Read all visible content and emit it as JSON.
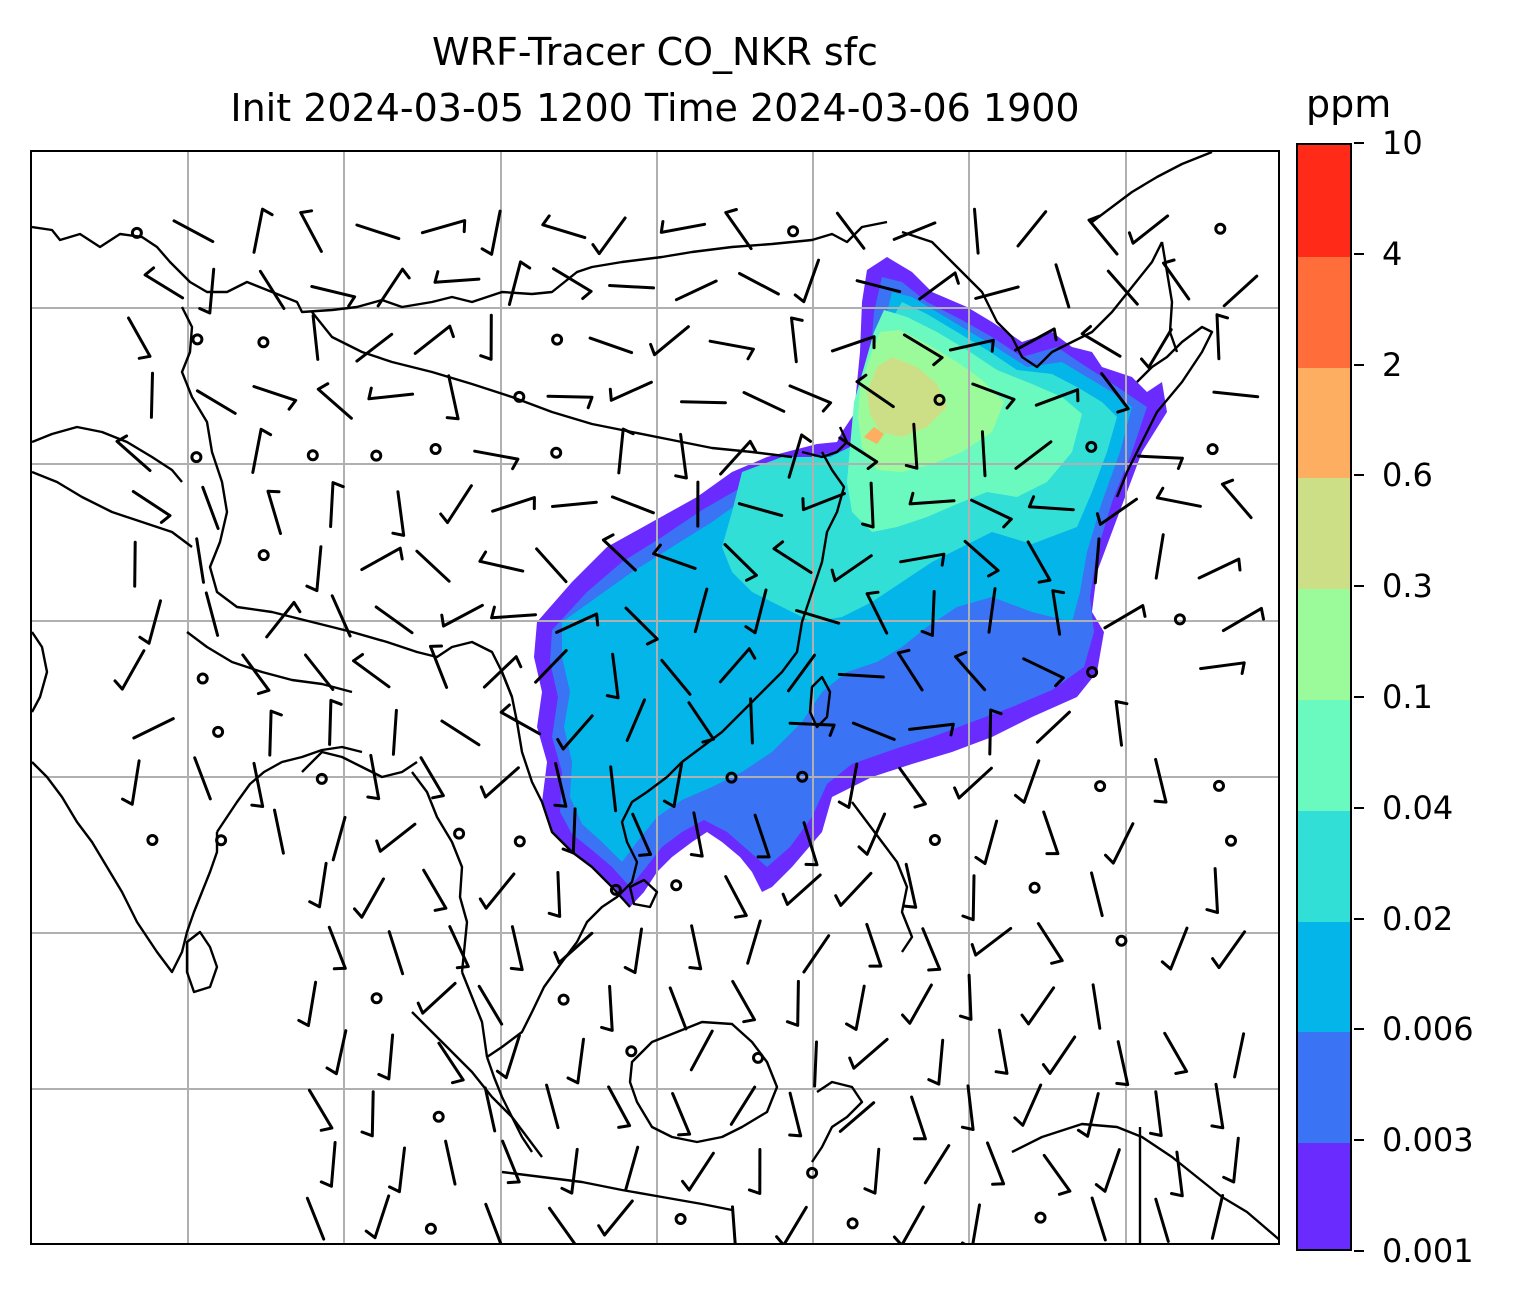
{
  "title": {
    "line1": "WRF-Tracer CO_NKR sfc",
    "line2": "Init 2024-03-05 1200 Time 2024-03-06 1900"
  },
  "colorbar": {
    "unit": "ppm",
    "levels": [
      "0.001",
      "0.003",
      "0.006",
      "0.02",
      "0.04",
      "0.1",
      "0.3",
      "0.6",
      "2",
      "4",
      "10"
    ],
    "colors": [
      "#6a2bff",
      "#3a73f3",
      "#03b5e8",
      "#31dfd6",
      "#6afac0",
      "#9bfb9b",
      "#cddf86",
      "#fdae61",
      "#ff6e3a",
      "#ff2a18"
    ]
  },
  "map": {
    "land_outline_color": "#000000",
    "gridline_color": "#b0b0b0",
    "barb_color": "#000000"
  }
}
